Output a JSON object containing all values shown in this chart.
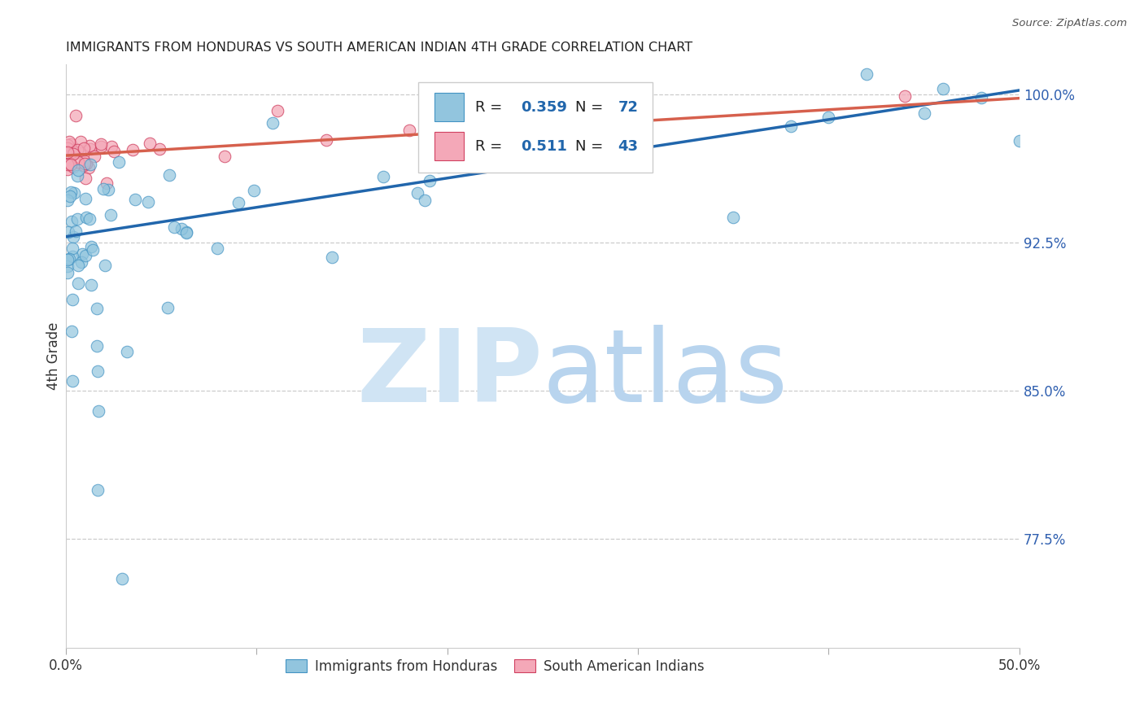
{
  "title": "IMMIGRANTS FROM HONDURAS VS SOUTH AMERICAN INDIAN 4TH GRADE CORRELATION CHART",
  "source": "Source: ZipAtlas.com",
  "ylabel": "4th Grade",
  "xlim": [
    0.0,
    0.5
  ],
  "ylim": [
    0.72,
    1.015
  ],
  "ytick_vals": [
    0.775,
    0.85,
    0.925,
    1.0
  ],
  "ytick_labels": [
    "77.5%",
    "85.0%",
    "92.5%",
    "100.0%"
  ],
  "blue_color": "#92c5de",
  "blue_edge_color": "#4393c3",
  "pink_color": "#f4a8b8",
  "pink_edge_color": "#d04060",
  "blue_line_color": "#2166ac",
  "pink_line_color": "#d6604d",
  "watermark_zip_color": "#d0e4f4",
  "watermark_atlas_color": "#b8d4ee",
  "blue_intercept": 0.928,
  "blue_slope": 0.148,
  "pink_intercept": 0.969,
  "pink_slope": 0.058,
  "legend_r1": "0.359",
  "legend_n1": "72",
  "legend_r2": "0.511",
  "legend_n2": "43"
}
